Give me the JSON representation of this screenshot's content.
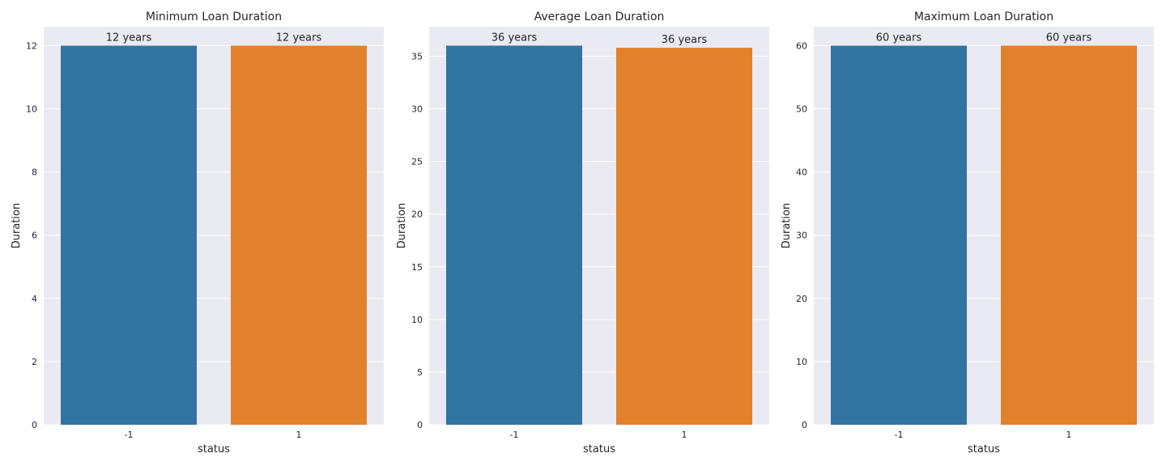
{
  "chart_data": [
    {
      "type": "bar",
      "title": "Minimum Loan Duration",
      "xlabel": "status",
      "ylabel": "Duration",
      "categories": [
        "-1",
        "1"
      ],
      "values": [
        12,
        12
      ],
      "data_labels": [
        "12 years",
        "12 years"
      ],
      "yticks": [
        0,
        2,
        4,
        6,
        8,
        10,
        12
      ],
      "ylim": [
        0,
        12.6
      ],
      "grid": true,
      "colors": [
        "#3274a1",
        "#e1812c"
      ]
    },
    {
      "type": "bar",
      "title": "Average Loan Duration",
      "xlabel": "status",
      "ylabel": "Duration",
      "categories": [
        "-1",
        "1"
      ],
      "values": [
        36,
        35.8
      ],
      "data_labels": [
        "36 years",
        "36 years"
      ],
      "yticks": [
        0,
        5,
        10,
        15,
        20,
        25,
        30,
        35
      ],
      "ylim": [
        0,
        37.8
      ],
      "grid": true,
      "colors": [
        "#3274a1",
        "#e1812c"
      ]
    },
    {
      "type": "bar",
      "title": "Maximum Loan Duration",
      "xlabel": "status",
      "ylabel": "Duration",
      "categories": [
        "-1",
        "1"
      ],
      "values": [
        60,
        60
      ],
      "data_labels": [
        "60 years",
        "60 years"
      ],
      "yticks": [
        0,
        10,
        20,
        30,
        40,
        50,
        60
      ],
      "ylim": [
        0,
        63
      ],
      "grid": true,
      "colors": [
        "#3274a1",
        "#e1812c"
      ]
    }
  ],
  "style": {
    "background": "#ffffff",
    "plot_background": "#eaeaf2",
    "grid_color": "#ffffff"
  }
}
